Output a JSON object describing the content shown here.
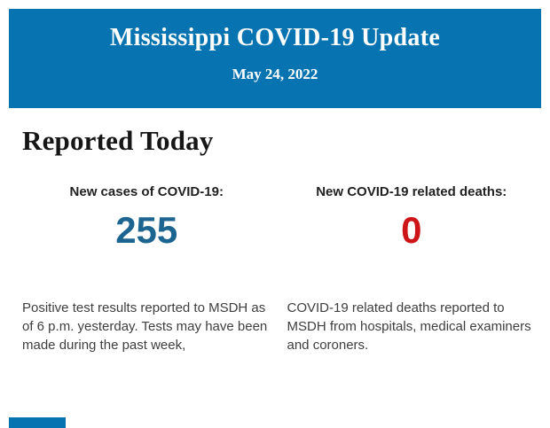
{
  "colors": {
    "brand_blue": "#0774b1",
    "cases_blue": "#1d6591",
    "deaths_red": "#cd1416"
  },
  "header": {
    "title": "Mississippi COVID-19 Update",
    "date": "May 24, 2022"
  },
  "report": {
    "heading": "Reported Today",
    "stats": [
      {
        "label": "New cases of COVID-19:",
        "value": "255",
        "description": "Positive test results reported to MSDH as of 6 p.m. yesterday. Tests may have been made during the past week,"
      },
      {
        "label": "New COVID-19 related deaths:",
        "value": "0",
        "description": "COVID-19 related deaths reported to MSDH from hospitals, medical examiners and coroners."
      }
    ]
  }
}
